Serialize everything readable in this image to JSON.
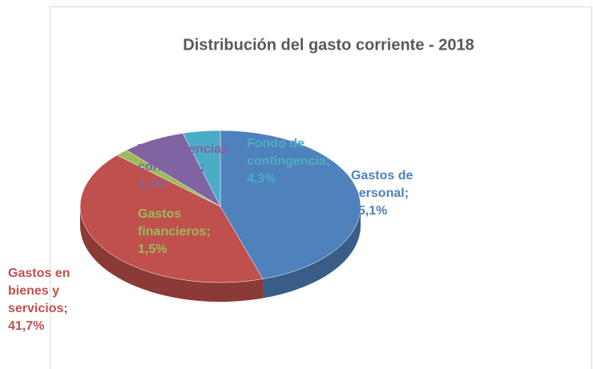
{
  "chart_data": {
    "type": "pie",
    "title": "Distribución del gasto corriente - 2018",
    "values": [
      45.1,
      41.7,
      1.5,
      7.4,
      4.3
    ],
    "value_labels": [
      "Gastos de personal; 45,1%",
      "Gastos en bienes y servicios; 41,7%",
      "Gastos financieros; 1,5%",
      "Transferencias corrientes; 7,4%",
      "Fondo de contingencia; 4,3%"
    ],
    "colors": [
      "#4f81bd",
      "#c0504d",
      "#9bbb59",
      "#8064a2",
      "#4bacc6"
    ]
  }
}
